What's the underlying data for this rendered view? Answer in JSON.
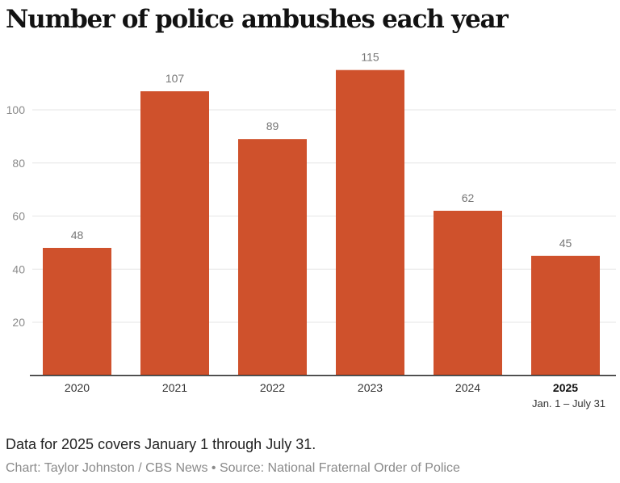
{
  "title": "Number of police ambushes each year",
  "note": "Data for 2025 covers January 1 through July 31.",
  "credit": "Chart: Taylor Johnston / CBS News • Source: National Fraternal Order of Police",
  "chart_data": {
    "type": "bar",
    "title": "Number of police ambushes each year",
    "categories": [
      "2020",
      "2021",
      "2022",
      "2023",
      "2024",
      "2025"
    ],
    "category_sublabels": [
      "",
      "",
      "",
      "",
      "",
      "Jan. 1 – July 31"
    ],
    "highlight_category": "2025",
    "values": [
      48,
      107,
      89,
      115,
      62,
      45
    ],
    "yticks": [
      20,
      40,
      60,
      80,
      100
    ],
    "ylim": [
      0,
      115
    ],
    "xlabel": "",
    "ylabel": "",
    "grid": true,
    "data_labels": true,
    "colors": {
      "bar": "#cf512c",
      "grid": "#e6e6e6",
      "axis": "#222222",
      "tick_text": "#8a8a8a",
      "label_text": "#777777"
    }
  }
}
